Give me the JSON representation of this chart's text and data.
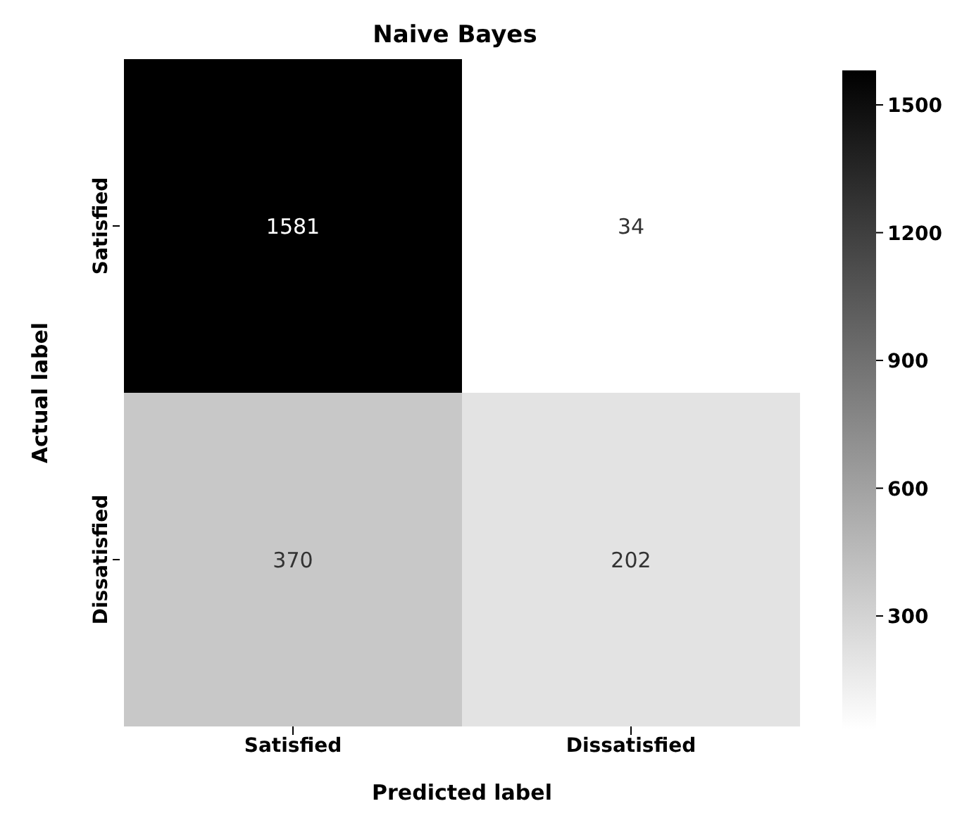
{
  "chart_data": {
    "type": "heatmap",
    "title": "Naive Bayes",
    "xlabel": "Predicted label",
    "ylabel": "Actual label",
    "categories": [
      "Satisfied",
      "Dissatisfied"
    ],
    "y_categories": [
      "Satisfied",
      "Dissatisfied"
    ],
    "cells": [
      [
        1581,
        34
      ],
      [
        370,
        202
      ]
    ],
    "data_labels": true,
    "clim": [
      34,
      1581
    ],
    "cticks": [
      300,
      600,
      900,
      1200,
      1500
    ]
  }
}
